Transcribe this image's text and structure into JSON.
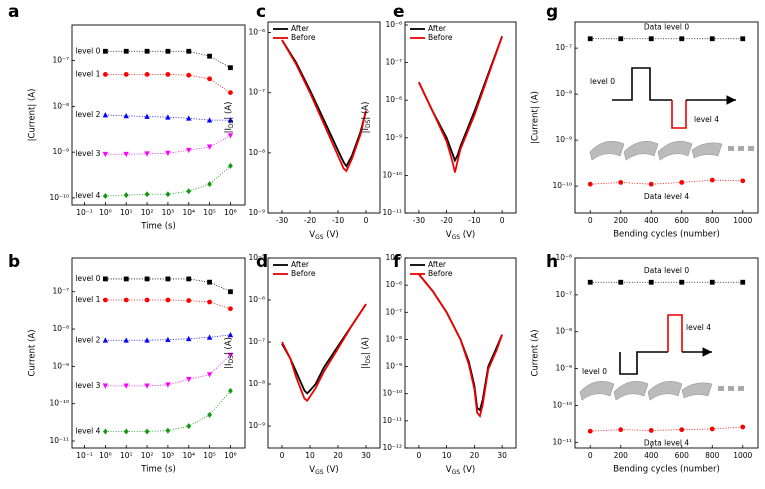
{
  "chart_data": [
    {
      "type": "scatter",
      "panel": "a",
      "xlabel": "Time (s)",
      "ylabel": "|Current| (A)",
      "xscale": "log",
      "yscale": "log",
      "xlim": [
        0.025,
        5000000
      ],
      "ylim": [
        7e-11,
        6e-07
      ],
      "xticks": [
        {
          "value": 0.1,
          "label": "10⁻¹"
        },
        {
          "value": 1,
          "label": "10⁰"
        },
        {
          "value": 10,
          "label": "10¹"
        },
        {
          "value": 100,
          "label": "10²"
        },
        {
          "value": 1000,
          "label": "10³"
        },
        {
          "value": 10000,
          "label": "10⁴"
        },
        {
          "value": 100000,
          "label": "10⁵"
        },
        {
          "value": 1000000,
          "label": "10⁶"
        }
      ],
      "yticks": [
        {
          "value": 1e-10,
          "label": "10⁻¹⁰"
        },
        {
          "value": 1e-09,
          "label": "10⁻⁹"
        },
        {
          "value": 1e-08,
          "label": "10⁻⁸"
        },
        {
          "value": 1e-07,
          "label": "10⁻⁷"
        }
      ],
      "x": [
        1,
        10,
        100,
        1000,
        10000,
        100000,
        1000000
      ],
      "series": [
        {
          "name": "level 0",
          "color": "#000000",
          "marker": "square",
          "values": [
            1.6e-07,
            1.6e-07,
            1.6e-07,
            1.6e-07,
            1.6e-07,
            1.25e-07,
            7e-08
          ]
        },
        {
          "name": "level 1",
          "color": "#ff0000",
          "marker": "circle",
          "values": [
            5e-08,
            5e-08,
            5e-08,
            5e-08,
            4.8e-08,
            4e-08,
            2e-08
          ]
        },
        {
          "name": "level 2",
          "color": "#0000ff",
          "marker": "triangle-up",
          "values": [
            6.5e-09,
            6.2e-09,
            6e-09,
            5.8e-09,
            5.5e-09,
            5e-09,
            5e-09
          ]
        },
        {
          "name": "level 3",
          "color": "#ff00ff",
          "marker": "triangle-down",
          "values": [
            9e-10,
            9e-10,
            9.2e-10,
            9.5e-10,
            1.1e-09,
            1.3e-09,
            2.3e-09
          ]
        },
        {
          "name": "level 4",
          "color": "#119911",
          "marker": "diamond",
          "values": [
            1.1e-10,
            1.15e-10,
            1.2e-10,
            1.2e-10,
            1.4e-10,
            2e-10,
            5e-10
          ]
        }
      ]
    },
    {
      "type": "scatter",
      "panel": "b",
      "xlabel": "Time (s)",
      "ylabel": "Current (A)",
      "xscale": "log",
      "yscale": "log",
      "xlim": [
        0.025,
        5000000
      ],
      "ylim": [
        6.5e-12,
        8e-07
      ],
      "xticks": [
        {
          "value": 0.1,
          "label": "10⁻¹"
        },
        {
          "value": 1,
          "label": "10⁰"
        },
        {
          "value": 10,
          "label": "10¹"
        },
        {
          "value": 100,
          "label": "10²"
        },
        {
          "value": 1000,
          "label": "10³"
        },
        {
          "value": 10000,
          "label": "10⁴"
        },
        {
          "value": 100000,
          "label": "10⁵"
        },
        {
          "value": 1000000,
          "label": "10⁶"
        }
      ],
      "yticks": [
        {
          "value": 1e-11,
          "label": "10⁻¹¹"
        },
        {
          "value": 1e-10,
          "label": "10⁻¹⁰"
        },
        {
          "value": 1e-09,
          "label": "10⁻⁹"
        },
        {
          "value": 1e-08,
          "label": "10⁻⁸"
        },
        {
          "value": 1e-07,
          "label": "10⁻⁷"
        }
      ],
      "x": [
        1,
        10,
        100,
        1000,
        10000,
        100000,
        1000000
      ],
      "series": [
        {
          "name": "level 0",
          "color": "#000000",
          "marker": "square",
          "values": [
            2.2e-07,
            2.2e-07,
            2.2e-07,
            2.2e-07,
            2.2e-07,
            1.8e-07,
            1e-07
          ]
        },
        {
          "name": "level 1",
          "color": "#ff0000",
          "marker": "circle",
          "values": [
            6e-08,
            6e-08,
            6e-08,
            6e-08,
            5.8e-08,
            5.3e-08,
            3.5e-08
          ]
        },
        {
          "name": "level 2",
          "color": "#0000ff",
          "marker": "triangle-up",
          "values": [
            5e-09,
            5e-09,
            5e-09,
            5.2e-09,
            5.5e-09,
            6e-09,
            7e-09
          ]
        },
        {
          "name": "level 3",
          "color": "#ff00ff",
          "marker": "triangle-down",
          "values": [
            3e-10,
            3e-10,
            3e-10,
            3.2e-10,
            4.5e-10,
            6e-10,
            2e-09
          ]
        },
        {
          "name": "level 4",
          "color": "#119911",
          "marker": "diamond",
          "values": [
            1.8e-11,
            1.8e-11,
            1.8e-11,
            1.9e-11,
            2.5e-11,
            5e-11,
            2.2e-10
          ]
        }
      ]
    },
    {
      "type": "line",
      "panel": "c",
      "xlabel": [
        "V",
        "GS",
        " (V)"
      ],
      "ylabel": [
        "|I",
        "DS",
        "| (A)"
      ],
      "yscale": "log",
      "xlim": [
        -35,
        5
      ],
      "ylim": [
        1e-09,
        1.5e-06
      ],
      "xticks": [
        -30,
        -20,
        -10,
        0
      ],
      "yticks": [
        {
          "value": 1e-09,
          "label": "10⁻⁹"
        },
        {
          "value": 1e-08,
          "label": "10⁻⁸"
        },
        {
          "value": 1e-07,
          "label": "10⁻⁷"
        },
        {
          "value": 1e-06,
          "label": "10⁻⁶"
        }
      ],
      "x": [
        -30,
        -25,
        -20,
        -15,
        -10,
        -8,
        -7,
        -5,
        -2,
        0
      ],
      "series": [
        {
          "name": "After",
          "color": "#000000",
          "values": [
            7.5e-07,
            3.2e-07,
            1.1e-07,
            3.5e-08,
            1.1e-08,
            7e-09,
            6e-09,
            9e-09,
            2.2e-08,
            5e-08
          ]
        },
        {
          "name": "Before",
          "color": "#ee0000",
          "values": [
            7.5e-07,
            3e-07,
            1e-07,
            3e-08,
            9e-09,
            5.5e-09,
            5e-09,
            8e-09,
            2e-08,
            5e-08
          ]
        }
      ]
    },
    {
      "type": "line",
      "panel": "d",
      "xlabel": [
        "V",
        "GS",
        " (V)"
      ],
      "ylabel": [
        "|I",
        "DS",
        "| (A)"
      ],
      "yscale": "log",
      "xlim": [
        -5,
        35
      ],
      "ylim": [
        3e-10,
        1e-05
      ],
      "xticks": [
        0,
        10,
        20,
        30
      ],
      "yticks": [
        {
          "value": 1e-09,
          "label": "10⁻⁹"
        },
        {
          "value": 1e-08,
          "label": "10⁻⁸"
        },
        {
          "value": 1e-07,
          "label": "10⁻⁷"
        },
        {
          "value": 1e-06,
          "label": "10⁻⁶"
        },
        {
          "value": 1e-05,
          "label": "10⁻⁵"
        }
      ],
      "x": [
        0,
        3,
        5,
        8,
        9,
        10,
        12,
        15,
        20,
        25,
        30
      ],
      "series": [
        {
          "name": "After",
          "color": "#000000",
          "values": [
            9e-08,
            4e-08,
            2e-08,
            7e-09,
            6e-09,
            7e-09,
            1e-08,
            2.5e-08,
            8e-08,
            2.5e-07,
            8e-07
          ]
        },
        {
          "name": "Before",
          "color": "#ee0000",
          "values": [
            1e-07,
            4e-08,
            1.5e-08,
            4.5e-09,
            4e-09,
            5e-09,
            8e-09,
            2e-08,
            7e-08,
            2.5e-07,
            8e-07
          ]
        }
      ]
    },
    {
      "type": "line",
      "panel": "e",
      "xlabel": [
        "V",
        "GS",
        " (V)"
      ],
      "ylabel": [
        "|I",
        "DS",
        "| (A)"
      ],
      "yscale": "log",
      "xlim": [
        -35,
        5
      ],
      "ylim": [
        1e-11,
        1.2e-06
      ],
      "xticks": [
        -30,
        -20,
        -10,
        0
      ],
      "yticks": [
        {
          "value": 1e-11,
          "label": "10⁻¹¹"
        },
        {
          "value": 1e-10,
          "label": "10⁻¹⁰"
        },
        {
          "value": 1e-09,
          "label": "10⁻⁹"
        },
        {
          "value": 1e-08,
          "label": "10⁻⁸"
        },
        {
          "value": 1e-07,
          "label": "10⁻⁷"
        },
        {
          "value": 1e-06,
          "label": "10⁻⁶"
        }
      ],
      "x": [
        -30,
        -25,
        -20,
        -18,
        -17,
        -16,
        -15,
        -10,
        -5,
        0
      ],
      "series": [
        {
          "name": "After",
          "color": "#000000",
          "values": [
            3e-08,
            5e-09,
            1e-09,
            4e-10,
            2.5e-10,
            3.5e-10,
            6e-10,
            5e-09,
            5e-08,
            5e-07
          ]
        },
        {
          "name": "Before",
          "color": "#ee0000",
          "values": [
            3e-08,
            5e-09,
            8e-10,
            2.5e-10,
            1.2e-10,
            2.5e-10,
            5e-10,
            4e-09,
            4.5e-08,
            5e-07
          ]
        }
      ]
    },
    {
      "type": "line",
      "panel": "f",
      "xlabel": [
        "V",
        "GS",
        " (V)"
      ],
      "ylabel": [
        "|I",
        "DS",
        "| (A)"
      ],
      "yscale": "log",
      "xlim": [
        -5,
        35
      ],
      "ylim": [
        1e-12,
        1e-05
      ],
      "xticks": [
        0,
        10,
        20,
        30
      ],
      "yticks": [
        {
          "value": 1e-12,
          "label": "10⁻¹²"
        },
        {
          "value": 1e-11,
          "label": "10⁻¹¹"
        },
        {
          "value": 1e-10,
          "label": "10⁻¹⁰"
        },
        {
          "value": 1e-09,
          "label": "10⁻⁹"
        },
        {
          "value": 1e-08,
          "label": "10⁻⁸"
        },
        {
          "value": 1e-07,
          "label": "10⁻⁷"
        },
        {
          "value": 1e-06,
          "label": "10⁻⁶"
        },
        {
          "value": 1e-05,
          "label": "10⁻⁵"
        }
      ],
      "x": [
        0,
        5,
        10,
        15,
        18,
        20,
        21,
        22,
        23,
        25,
        28,
        30
      ],
      "series": [
        {
          "name": "After",
          "color": "#000000",
          "values": [
            2.5e-06,
            6e-07,
            1e-07,
            1e-08,
            1.5e-09,
            2e-10,
            3e-11,
            2.5e-11,
            6e-11,
            1e-09,
            5e-09,
            1.5e-08
          ]
        },
        {
          "name": "Before",
          "color": "#ee0000",
          "values": [
            2.5e-06,
            6e-07,
            1e-07,
            1e-08,
            1.2e-09,
            1.5e-10,
            2e-11,
            1.5e-11,
            4e-11,
            8e-10,
            4e-09,
            1.5e-08
          ]
        }
      ]
    },
    {
      "type": "scatter",
      "panel": "g",
      "xlabel": "Bending cycles (number)",
      "ylabel": "|Current| (A)",
      "yscale": "log",
      "xlim": [
        -100,
        1100
      ],
      "ylim": [
        2.6e-11,
        3.7e-07
      ],
      "xticks": [
        0,
        200,
        400,
        600,
        800,
        1000
      ],
      "yticks": [
        {
          "value": 1e-10,
          "label": "10⁻¹⁰"
        },
        {
          "value": 1e-09,
          "label": "10⁻⁹"
        },
        {
          "value": 1e-08,
          "label": "10⁻⁸"
        },
        {
          "value": 1e-07,
          "label": "10⁻⁷"
        }
      ],
      "x": [
        0,
        200,
        400,
        600,
        800,
        1000
      ],
      "annotations": [
        "level 0",
        "level 4"
      ],
      "series": [
        {
          "name": "Data level 0",
          "color": "#000000",
          "marker": "square",
          "values": [
            1.6e-07,
            1.6e-07,
            1.6e-07,
            1.6e-07,
            1.6e-07,
            1.6e-07
          ]
        },
        {
          "name": "Data level 4",
          "color": "#ff0000",
          "marker": "circle",
          "values": [
            1.1e-10,
            1.2e-10,
            1.1e-10,
            1.2e-10,
            1.35e-10,
            1.3e-10
          ]
        }
      ]
    },
    {
      "type": "scatter",
      "panel": "h",
      "xlabel": "Bending cycles (number)",
      "ylabel": "Current (A)",
      "yscale": "log",
      "xlim": [
        -100,
        1100
      ],
      "ylim": [
        7e-12,
        1e-06
      ],
      "xticks": [
        0,
        200,
        400,
        600,
        800,
        1000
      ],
      "yticks": [
        {
          "value": 1e-11,
          "label": "10⁻¹¹"
        },
        {
          "value": 1e-10,
          "label": "10⁻¹⁰"
        },
        {
          "value": 1e-09,
          "label": "10⁻⁹"
        },
        {
          "value": 1e-08,
          "label": "10⁻⁸"
        },
        {
          "value": 1e-07,
          "label": "10⁻⁷"
        },
        {
          "value": 1e-06,
          "label": "10⁻⁶"
        }
      ],
      "x": [
        0,
        200,
        400,
        600,
        800,
        1000
      ],
      "annotations": [
        "level 0",
        "level 4"
      ],
      "series": [
        {
          "name": "Data level 0",
          "color": "#000000",
          "marker": "square",
          "values": [
            2.2e-07,
            2.2e-07,
            2.2e-07,
            2.2e-07,
            2.2e-07,
            2.2e-07
          ]
        },
        {
          "name": "Data level 4",
          "color": "#ff0000",
          "marker": "circle",
          "values": [
            2e-11,
            2.2e-11,
            2.1e-11,
            2.2e-11,
            2.3e-11,
            2.6e-11
          ]
        }
      ]
    }
  ]
}
